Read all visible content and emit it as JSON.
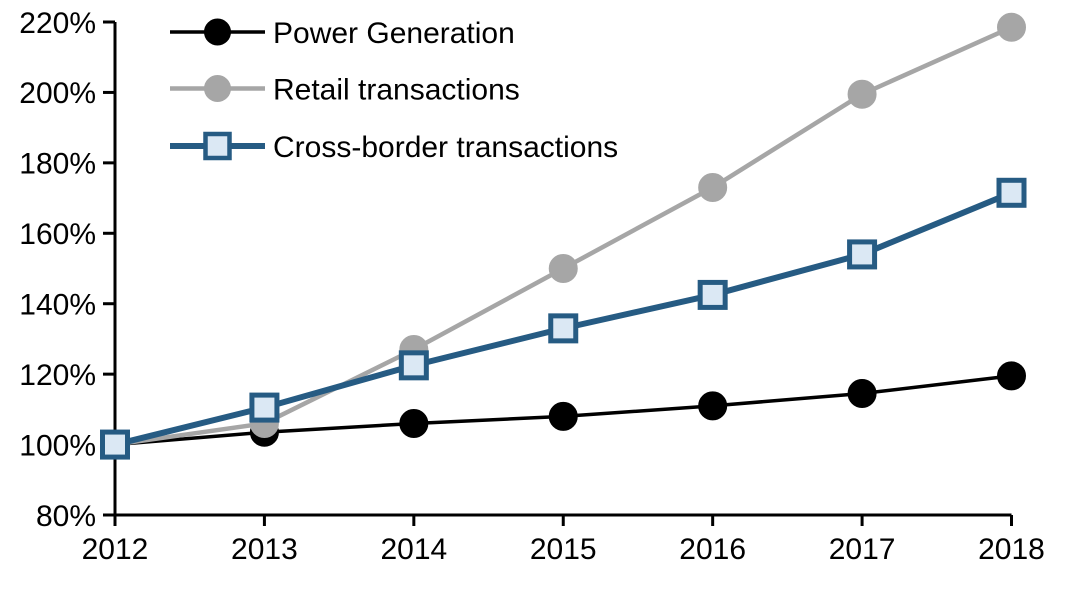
{
  "chart_data": {
    "type": "line",
    "title": "",
    "x": [
      2012,
      2013,
      2014,
      2015,
      2016,
      2017,
      2018
    ],
    "x_tick_labels": [
      "2012",
      "2013",
      "2014",
      "2015",
      "2016",
      "2017",
      "2018"
    ],
    "y_axis": {
      "min": 80,
      "max": 220,
      "tick_step": 20,
      "tick_labels": [
        "80%",
        "100%",
        "120%",
        "140%",
        "160%",
        "180%",
        "200%",
        "220%"
      ],
      "unit": "percent"
    },
    "grid": false,
    "legend_position": "top-left-inside",
    "legend_entries": [
      "Power Generation",
      "Retail transactions",
      "Cross-border transactions"
    ],
    "series": [
      {
        "name": "Power Generation",
        "marker": "circle",
        "line_color": "#000000",
        "marker_fill": "#000000",
        "marker_stroke": "#000000",
        "line_width": 3.5,
        "values": [
          100,
          103.5,
          106,
          108,
          111,
          114.5,
          119.5
        ]
      },
      {
        "name": "Retail transactions",
        "marker": "circle",
        "line_color": "#a6a6a6",
        "marker_fill": "#a6a6a6",
        "marker_stroke": "#a6a6a6",
        "line_width": 4.5,
        "values": [
          100,
          106,
          127,
          150,
          173,
          199.5,
          218.5
        ]
      },
      {
        "name": "Cross-border transactions",
        "marker": "square",
        "line_color": "#265b83",
        "marker_fill": "#dbe8f4",
        "marker_stroke": "#265b83",
        "line_width": 6,
        "values": [
          100,
          110.5,
          122.5,
          133,
          142.5,
          154,
          171.5
        ]
      }
    ]
  },
  "colors": {
    "background": "#ffffff",
    "axis": "#000000",
    "text": "#000000"
  }
}
